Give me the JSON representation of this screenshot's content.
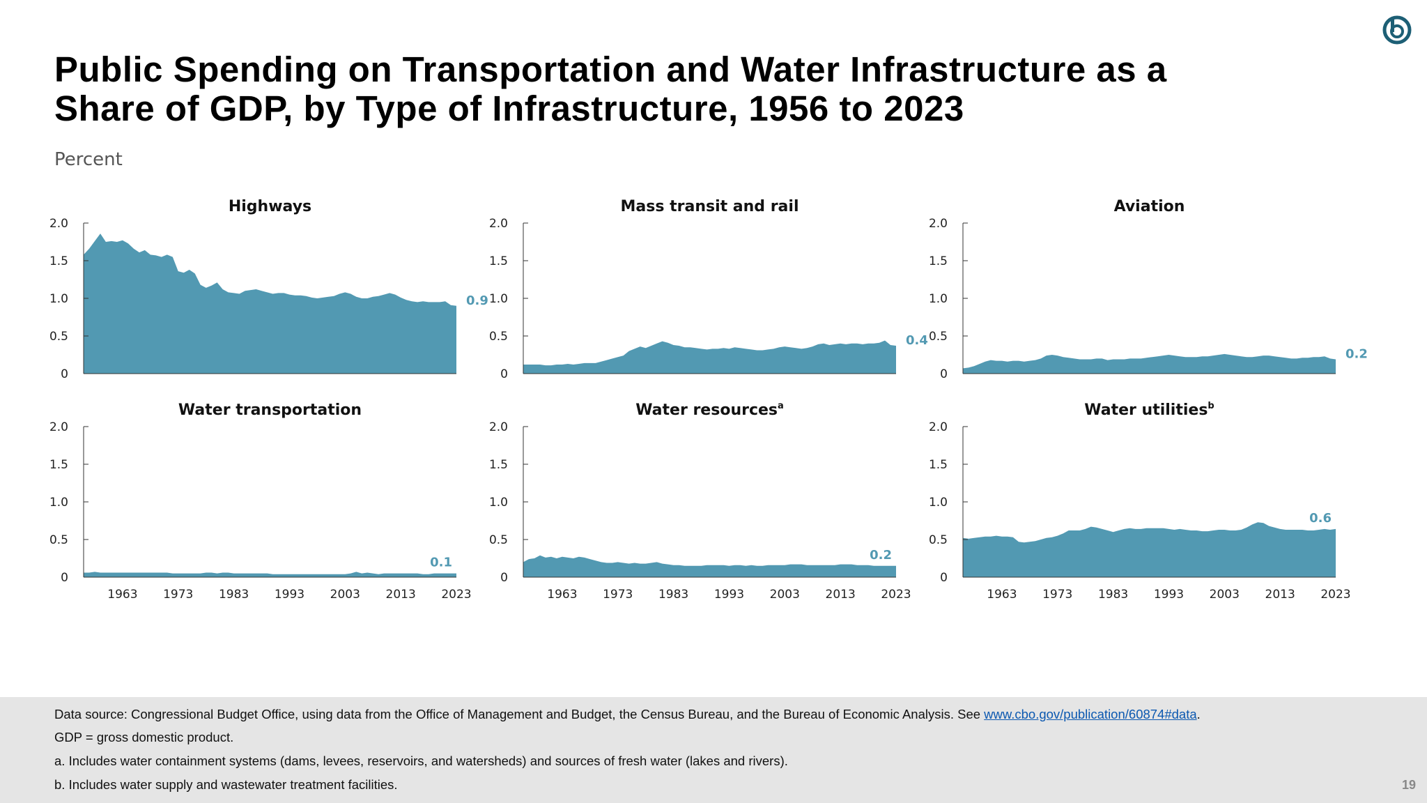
{
  "title_line1": "Public Spending on Transportation and Water Infrastructure as a",
  "title_line2": "Share of GDP, by Type of Infrastructure, 1956 to 2023",
  "unit_label": "Percent",
  "accent_color": "#5299b2",
  "chart_data": [
    {
      "type": "area",
      "title": "Highways",
      "superscript": "",
      "final_label": "0.9",
      "ylim": [
        0,
        2
      ],
      "yticks": [
        "0",
        "0.5",
        "1.0",
        "1.5",
        "2.0"
      ],
      "xticks": [
        "1963",
        "1973",
        "1983",
        "1993",
        "2003",
        "2013",
        "2023"
      ],
      "show_xticks": false,
      "x_start": 1956,
      "x_end": 2023,
      "values": [
        1.58,
        1.66,
        1.76,
        1.86,
        1.75,
        1.76,
        1.75,
        1.77,
        1.73,
        1.66,
        1.61,
        1.64,
        1.58,
        1.57,
        1.55,
        1.58,
        1.55,
        1.36,
        1.34,
        1.38,
        1.33,
        1.18,
        1.14,
        1.17,
        1.21,
        1.12,
        1.08,
        1.07,
        1.06,
        1.1,
        1.11,
        1.12,
        1.1,
        1.08,
        1.06,
        1.07,
        1.07,
        1.05,
        1.04,
        1.04,
        1.03,
        1.01,
        1.0,
        1.01,
        1.02,
        1.03,
        1.06,
        1.08,
        1.06,
        1.02,
        1.0,
        1.0,
        1.02,
        1.03,
        1.05,
        1.07,
        1.05,
        1.01,
        0.98,
        0.96,
        0.95,
        0.96,
        0.95,
        0.95,
        0.95,
        0.96,
        0.91,
        0.9
      ]
    },
    {
      "type": "area",
      "title": "Mass transit and rail",
      "superscript": "",
      "final_label": "0.4",
      "ylim": [
        0,
        2
      ],
      "yticks": [
        "0",
        "0.5",
        "1.0",
        "1.5",
        "2.0"
      ],
      "xticks": [
        "1963",
        "1973",
        "1983",
        "1993",
        "2003",
        "2013",
        "2023"
      ],
      "show_xticks": false,
      "x_start": 1956,
      "x_end": 2023,
      "values": [
        0.12,
        0.12,
        0.12,
        0.12,
        0.11,
        0.11,
        0.12,
        0.12,
        0.13,
        0.12,
        0.13,
        0.14,
        0.14,
        0.14,
        0.16,
        0.18,
        0.2,
        0.22,
        0.24,
        0.3,
        0.33,
        0.36,
        0.34,
        0.37,
        0.4,
        0.43,
        0.41,
        0.38,
        0.37,
        0.35,
        0.35,
        0.34,
        0.33,
        0.32,
        0.33,
        0.33,
        0.34,
        0.33,
        0.35,
        0.34,
        0.33,
        0.32,
        0.31,
        0.31,
        0.32,
        0.33,
        0.35,
        0.36,
        0.35,
        0.34,
        0.33,
        0.34,
        0.36,
        0.39,
        0.4,
        0.38,
        0.39,
        0.4,
        0.39,
        0.4,
        0.4,
        0.39,
        0.4,
        0.4,
        0.41,
        0.44,
        0.38,
        0.37
      ]
    },
    {
      "type": "area",
      "title": "Aviation",
      "superscript": "",
      "final_label": "0.2",
      "ylim": [
        0,
        2
      ],
      "yticks": [
        "0",
        "0.5",
        "1.0",
        "1.5",
        "2.0"
      ],
      "xticks": [
        "1963",
        "1973",
        "1983",
        "1993",
        "2003",
        "2013",
        "2023"
      ],
      "show_xticks": false,
      "x_start": 1956,
      "x_end": 2023,
      "values": [
        0.07,
        0.08,
        0.1,
        0.13,
        0.16,
        0.18,
        0.17,
        0.17,
        0.16,
        0.17,
        0.17,
        0.16,
        0.17,
        0.18,
        0.2,
        0.24,
        0.25,
        0.24,
        0.22,
        0.21,
        0.2,
        0.19,
        0.19,
        0.19,
        0.2,
        0.2,
        0.18,
        0.19,
        0.19,
        0.19,
        0.2,
        0.2,
        0.2,
        0.21,
        0.22,
        0.23,
        0.24,
        0.25,
        0.24,
        0.23,
        0.22,
        0.22,
        0.22,
        0.23,
        0.23,
        0.24,
        0.25,
        0.26,
        0.25,
        0.24,
        0.23,
        0.22,
        0.22,
        0.23,
        0.24,
        0.24,
        0.23,
        0.22,
        0.21,
        0.2,
        0.2,
        0.21,
        0.21,
        0.22,
        0.22,
        0.23,
        0.2,
        0.19
      ]
    },
    {
      "type": "area",
      "title": "Water transportation",
      "superscript": "",
      "final_label": "0.1",
      "ylim": [
        0,
        2
      ],
      "yticks": [
        "0",
        "0.5",
        "1.0",
        "1.5",
        "2.0"
      ],
      "xticks": [
        "1963",
        "1973",
        "1983",
        "1993",
        "2003",
        "2013",
        "2023"
      ],
      "show_xticks": true,
      "x_start": 1956,
      "x_end": 2023,
      "values": [
        0.06,
        0.06,
        0.07,
        0.06,
        0.06,
        0.06,
        0.06,
        0.06,
        0.06,
        0.06,
        0.06,
        0.06,
        0.06,
        0.06,
        0.06,
        0.06,
        0.05,
        0.05,
        0.05,
        0.05,
        0.05,
        0.05,
        0.06,
        0.06,
        0.05,
        0.06,
        0.06,
        0.05,
        0.05,
        0.05,
        0.05,
        0.05,
        0.05,
        0.05,
        0.04,
        0.04,
        0.04,
        0.04,
        0.04,
        0.04,
        0.04,
        0.04,
        0.04,
        0.04,
        0.04,
        0.04,
        0.04,
        0.04,
        0.05,
        0.07,
        0.05,
        0.06,
        0.05,
        0.04,
        0.05,
        0.05,
        0.05,
        0.05,
        0.05,
        0.05,
        0.05,
        0.04,
        0.04,
        0.05,
        0.05,
        0.05,
        0.05,
        0.05
      ]
    },
    {
      "type": "area",
      "title": "Water resources",
      "superscript": "a",
      "final_label": "0.2",
      "ylim": [
        0,
        2
      ],
      "yticks": [
        "0",
        "0.5",
        "1.0",
        "1.5",
        "2.0"
      ],
      "xticks": [
        "1963",
        "1973",
        "1983",
        "1993",
        "2003",
        "2013",
        "2023"
      ],
      "show_xticks": true,
      "x_start": 1956,
      "x_end": 2023,
      "values": [
        0.2,
        0.24,
        0.25,
        0.29,
        0.26,
        0.27,
        0.25,
        0.27,
        0.26,
        0.25,
        0.27,
        0.26,
        0.24,
        0.22,
        0.2,
        0.19,
        0.19,
        0.2,
        0.19,
        0.18,
        0.19,
        0.18,
        0.18,
        0.19,
        0.2,
        0.18,
        0.17,
        0.16,
        0.16,
        0.15,
        0.15,
        0.15,
        0.15,
        0.16,
        0.16,
        0.16,
        0.16,
        0.15,
        0.16,
        0.16,
        0.15,
        0.16,
        0.15,
        0.15,
        0.16,
        0.16,
        0.16,
        0.16,
        0.17,
        0.17,
        0.17,
        0.16,
        0.16,
        0.16,
        0.16,
        0.16,
        0.16,
        0.17,
        0.17,
        0.17,
        0.16,
        0.16,
        0.16,
        0.15,
        0.15,
        0.15,
        0.15,
        0.15
      ]
    },
    {
      "type": "area",
      "title": "Water utilities",
      "superscript": "b",
      "final_label": "0.6",
      "ylim": [
        0,
        2
      ],
      "yticks": [
        "0",
        "0.5",
        "1.0",
        "1.5",
        "2.0"
      ],
      "xticks": [
        "1963",
        "1973",
        "1983",
        "1993",
        "2003",
        "2013",
        "2023"
      ],
      "show_xticks": true,
      "x_start": 1956,
      "x_end": 2023,
      "values": [
        0.52,
        0.51,
        0.52,
        0.53,
        0.54,
        0.54,
        0.55,
        0.54,
        0.54,
        0.53,
        0.47,
        0.46,
        0.47,
        0.48,
        0.5,
        0.52,
        0.53,
        0.55,
        0.58,
        0.62,
        0.62,
        0.62,
        0.64,
        0.67,
        0.66,
        0.64,
        0.62,
        0.6,
        0.62,
        0.64,
        0.65,
        0.64,
        0.64,
        0.65,
        0.65,
        0.65,
        0.65,
        0.64,
        0.63,
        0.64,
        0.63,
        0.62,
        0.62,
        0.61,
        0.61,
        0.62,
        0.63,
        0.63,
        0.62,
        0.62,
        0.63,
        0.66,
        0.7,
        0.73,
        0.72,
        0.68,
        0.66,
        0.64,
        0.63,
        0.63,
        0.63,
        0.63,
        0.62,
        0.62,
        0.63,
        0.64,
        0.63,
        0.64
      ]
    }
  ],
  "footer": {
    "source_prefix": "Data source: Congressional Budget Office, using data from the Office of Management and Budget, the Census Bureau, and the Bureau of Economic Analysis. See ",
    "source_link": "www.cbo.gov/publication/60874#data",
    "source_suffix": ".",
    "gdp_note": "GDP = gross domestic product.",
    "note_a": "a. Includes water containment systems (dams, levees, reservoirs, and watersheds) and sources of fresh water (lakes and rivers).",
    "note_b": "b. Includes water supply and wastewater treatment facilities.",
    "page_number": "19"
  }
}
